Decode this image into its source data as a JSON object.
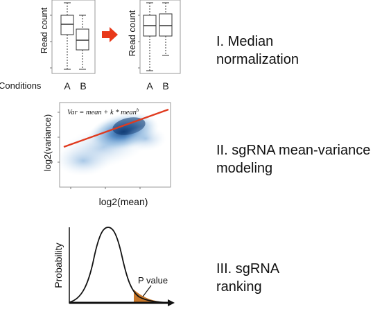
{
  "steps": [
    {
      "line1": "I. Median",
      "line2": "normalization"
    },
    {
      "line1": "II. sgRNA mean-variance",
      "line2": "modeling"
    },
    {
      "line1": "III. sgRNA",
      "line2": "ranking"
    }
  ],
  "panel1": {
    "ylabel_before": "Read count",
    "ylabel_after": "Read count",
    "conditions_label": "Conditions",
    "cond_a": "A",
    "cond_b": "B",
    "cond_a2": "A",
    "cond_b2": "B",
    "arrow_color": "#e8391a"
  },
  "panel2": {
    "formula": "Var = mean + k * mean",
    "formula_exp": "b",
    "xlabel": "log2(mean)",
    "ylabel": "log2(variance)",
    "fit_color": "#e03a1e",
    "density_color": "#1f5fa8"
  },
  "panel3": {
    "ylabel": "Probability",
    "pvalue_label": "P value",
    "tail_color": "#c8782a"
  }
}
